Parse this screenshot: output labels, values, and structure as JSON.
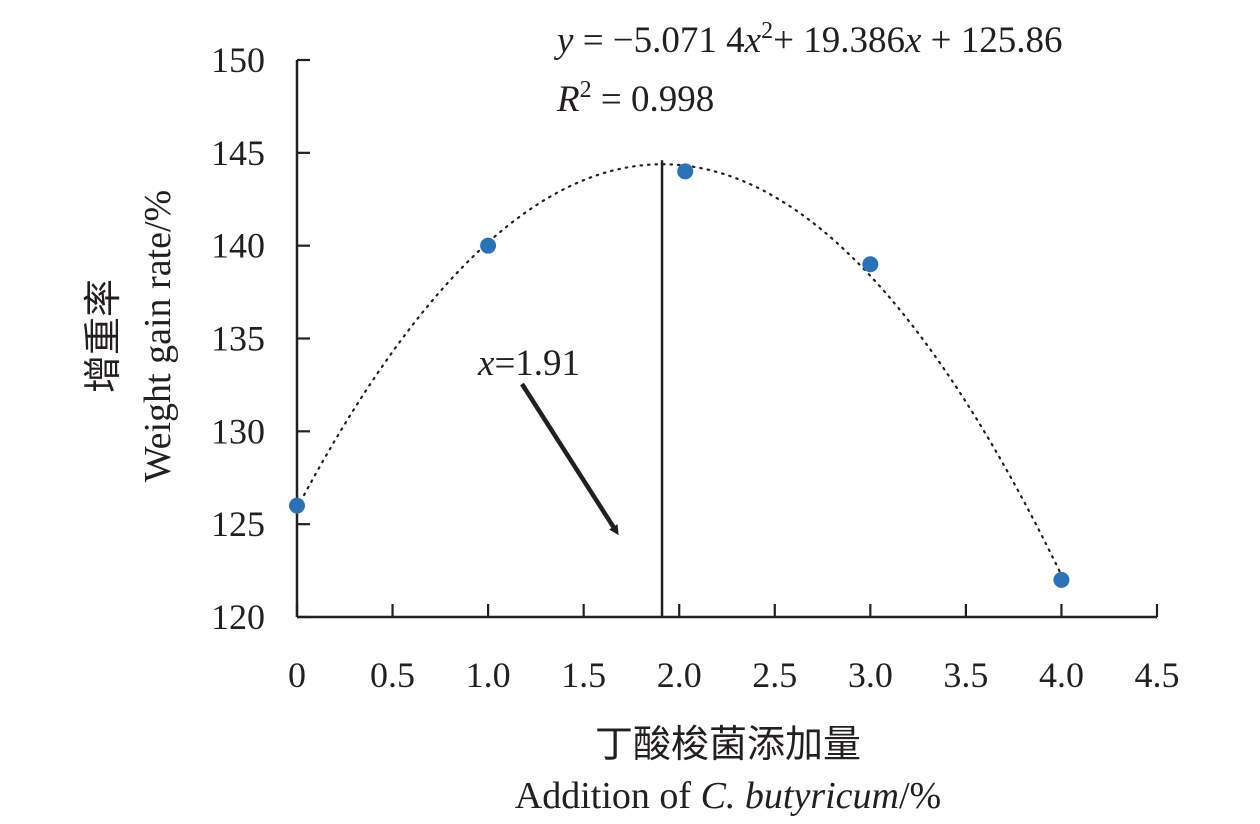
{
  "chart_data": {
    "type": "scatter",
    "x": [
      0,
      1.0,
      2.0,
      3.0,
      4.0
    ],
    "y": [
      126,
      140,
      144,
      139,
      122
    ],
    "xlim": [
      0,
      4.5
    ],
    "ylim": [
      120,
      150
    ],
    "x_ticks": [
      0,
      0.5,
      1.0,
      1.5,
      2.0,
      2.5,
      3.0,
      3.5,
      4.0,
      4.5
    ],
    "x_tick_labels": [
      "0",
      "0.5",
      "1.0",
      "1.5",
      "2.0",
      "2.5",
      "3.0",
      "3.5",
      "4.0",
      "4.5"
    ],
    "y_ticks": [
      120,
      125,
      130,
      135,
      140,
      145,
      150
    ],
    "y_tick_labels": [
      "120",
      "125",
      "130",
      "135",
      "140",
      "145",
      "150"
    ],
    "xlabel_cn": "丁酸梭菌添加量",
    "xlabel_en_prefix": "Addition of ",
    "xlabel_en_italic": "C. butyricum",
    "xlabel_en_suffix": "/%",
    "ylabel_cn": "增重率",
    "ylabel_en": "Weight gain rate/%",
    "trendline": {
      "type": "polynomial",
      "coefficients": [
        -5.0714,
        19.386,
        125.86
      ],
      "style": "dotted",
      "x_range": [
        0,
        4.0
      ]
    },
    "equation": {
      "y": "y",
      "part1": " = −5.071 4",
      "x1": "x",
      "sup1": "2",
      "part2": "+ 19.386",
      "x2": "x",
      "part3": " + 125.86"
    },
    "r_squared": {
      "r": "R",
      "sup": "2",
      "value": " = 0.998"
    },
    "vertex_line_x": 1.91,
    "vertex_annotation": {
      "x": "x",
      "value": "=1.91"
    },
    "grid": false,
    "legend": "none",
    "colors": {
      "point": "#2a72b8",
      "line": "#231f20",
      "text": "#231f20"
    }
  }
}
